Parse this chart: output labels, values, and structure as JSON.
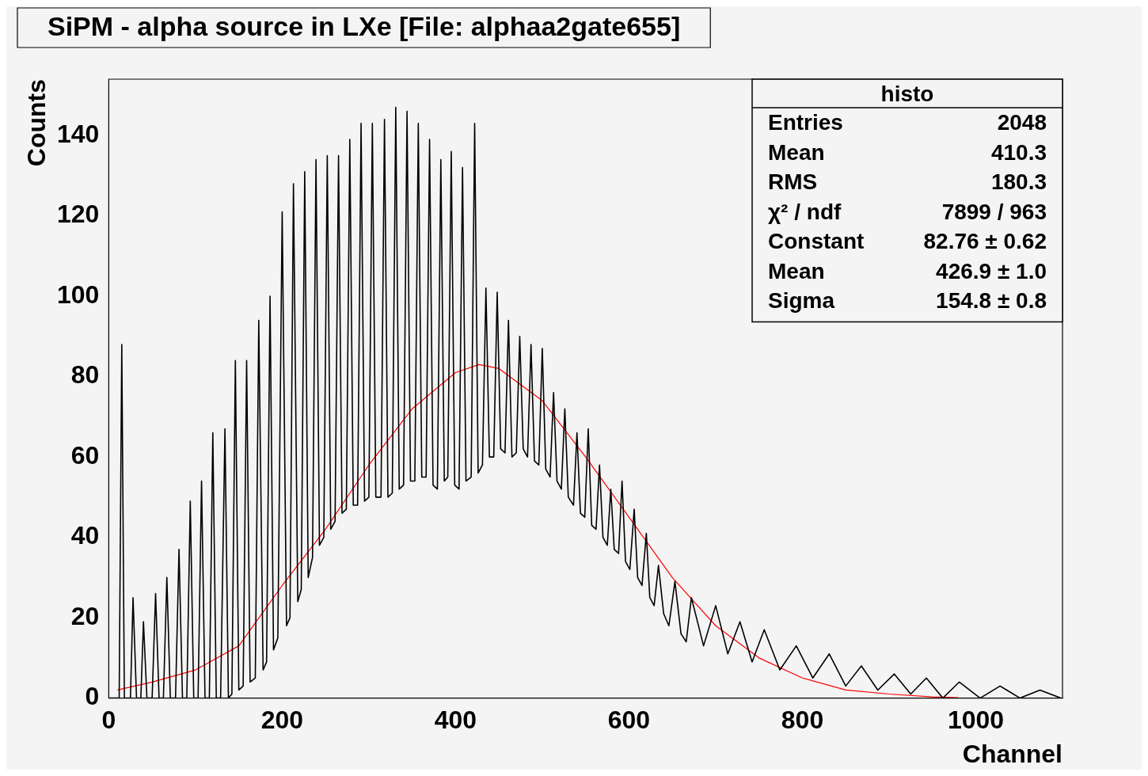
{
  "chart_data": {
    "type": "line",
    "title": "SiPM - alpha source in LXe [File: alphaa2gate655]",
    "xlabel": "Channel",
    "ylabel": "Counts",
    "xlim": [
      0,
      1100
    ],
    "xticks": [
      0,
      200,
      400,
      600,
      800,
      1000
    ],
    "ylim": [
      0,
      154
    ],
    "yticks": [
      0,
      20,
      40,
      60,
      80,
      100,
      120,
      140
    ],
    "grid": false,
    "legend": false,
    "marker": "none",
    "annotations": [
      "histo",
      "Entries  2048",
      "Mean  410.3",
      "RMS  180.3",
      "χ² / ndf  7899 / 963",
      "Constant  82.76 ± 0.62",
      "Mean  426.9 ± 1.0",
      "Sigma  154.8 ± 0.8"
    ],
    "series": [
      {
        "color": "#000000",
        "x": [
          0,
          12,
          15,
          18,
          25,
          28,
          32,
          37,
          40,
          44,
          50,
          54,
          58,
          63,
          67,
          71,
          77,
          81,
          85,
          90,
          94,
          98,
          103,
          107,
          111,
          116,
          120,
          124,
          129,
          134,
          138,
          142,
          146,
          150,
          155,
          159,
          163,
          169,
          173,
          178,
          182,
          186,
          190,
          195,
          200,
          205,
          209,
          213,
          218,
          222,
          226,
          230,
          235,
          239,
          243,
          248,
          252,
          256,
          261,
          265,
          269,
          274,
          278,
          282,
          287,
          291,
          295,
          300,
          304,
          308,
          314,
          318,
          322,
          327,
          331,
          335,
          340,
          344,
          348,
          353,
          357,
          361,
          366,
          370,
          374,
          379,
          383,
          387,
          391,
          395,
          399,
          404,
          408,
          412,
          418,
          422,
          426,
          431,
          435,
          439,
          444,
          448,
          452,
          457,
          461,
          465,
          470,
          474,
          478,
          483,
          487,
          491,
          496,
          500,
          504,
          509,
          513,
          517,
          522,
          526,
          530,
          536,
          540,
          544,
          549,
          553,
          557,
          562,
          566,
          570,
          575,
          579,
          583,
          588,
          592,
          596,
          601,
          606,
          610,
          615,
          620,
          624,
          629,
          634,
          640,
          646,
          653,
          660,
          666,
          672,
          686,
          700,
          714,
          728,
          742,
          756,
          774,
          793,
          812,
          831,
          850,
          868,
          887,
          906,
          925,
          943,
          962,
          981,
          1005,
          1028,
          1051,
          1074,
          1098
        ],
        "values": [
          0,
          0,
          88,
          0,
          0,
          25,
          0,
          0,
          19,
          0,
          0,
          26,
          0,
          0,
          30,
          0,
          0,
          37,
          0,
          0,
          49,
          0,
          0,
          54,
          0,
          0,
          66,
          0,
          0,
          67,
          0,
          1,
          84,
          2,
          3,
          84,
          4,
          5,
          94,
          7,
          9,
          100,
          12,
          15,
          121,
          18,
          20,
          128,
          24,
          27,
          131,
          30,
          35,
          134,
          38,
          40,
          135,
          42,
          44,
          135,
          46,
          47,
          139,
          48,
          48,
          143,
          49,
          50,
          143,
          50,
          50,
          144,
          50,
          51,
          147,
          52,
          53,
          146,
          54,
          54,
          143,
          55,
          55,
          139,
          53,
          52,
          134,
          54,
          55,
          136,
          53,
          52,
          132,
          54,
          55,
          143,
          56,
          58,
          102,
          60,
          60,
          101,
          62,
          61,
          94,
          60,
          61,
          90,
          62,
          60,
          88,
          59,
          58,
          87,
          57,
          55,
          76,
          54,
          52,
          72,
          50,
          48,
          66,
          46,
          45,
          67,
          43,
          42,
          58,
          40,
          38,
          52,
          37,
          36,
          54,
          34,
          32,
          47,
          30,
          28,
          41,
          25,
          23,
          33,
          21,
          18,
          29,
          16,
          14,
          25,
          13,
          23,
          11,
          19,
          9,
          17,
          7,
          13,
          5,
          11,
          3,
          8,
          2,
          6,
          1,
          5,
          0,
          4,
          0,
          3,
          0,
          2,
          0
        ]
      },
      {
        "color": "#ff0000",
        "x": [
          10,
          50,
          100,
          150,
          200,
          250,
          300,
          350,
          400,
          427,
          450,
          500,
          550,
          600,
          650,
          700,
          750,
          800,
          850,
          900,
          950,
          980
        ],
        "values": [
          2,
          4,
          7,
          13,
          28,
          42,
          58,
          72,
          81,
          83,
          82,
          74,
          60,
          45,
          30,
          18,
          10,
          5,
          2,
          1,
          0.3,
          0.1
        ]
      }
    ]
  }
}
